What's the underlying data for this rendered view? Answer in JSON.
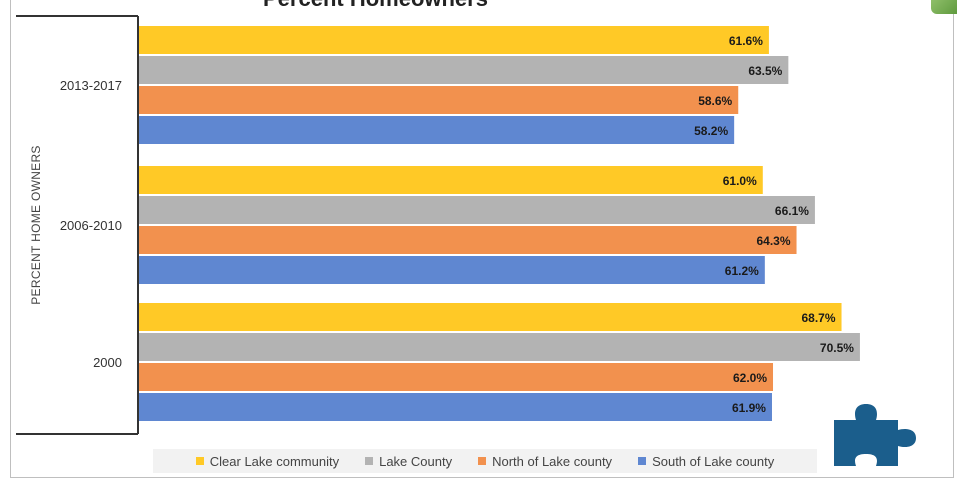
{
  "chart_data": {
    "type": "bar",
    "orientation": "horizontal",
    "title": "Percent Homeowners",
    "ylabel": "PERCENT HOME OWNERS",
    "categories": [
      "2013-2017",
      "2006-2010",
      "2000"
    ],
    "series": [
      {
        "name": "Clear Lake community",
        "color": "#FFC926",
        "values": [
          61.6,
          61.0,
          68.7
        ],
        "labels": [
          "61.6%",
          "61.0%",
          "68.7%"
        ]
      },
      {
        "name": "Lake County",
        "color": "#B3B3B3",
        "values": [
          63.5,
          66.1,
          70.5
        ],
        "labels": [
          "63.5%",
          "66.1%",
          "70.5%"
        ]
      },
      {
        "name": "North of Lake county",
        "color": "#F2914E",
        "values": [
          58.6,
          64.3,
          62.0
        ],
        "labels": [
          "58.6%",
          "64.3%",
          "62.0%"
        ]
      },
      {
        "name": "South of Lake county",
        "color": "#5F87D1",
        "values": [
          58.2,
          61.2,
          61.9
        ],
        "labels": [
          "58.2%",
          "61.2%",
          "61.9%"
        ]
      }
    ],
    "xlim": [
      0,
      72
    ],
    "grid": false,
    "legend_position": "bottom"
  },
  "decor": {
    "puzzle_icon_color": "#1B5E8C",
    "corner_image": "green-photo-thumbnail"
  }
}
